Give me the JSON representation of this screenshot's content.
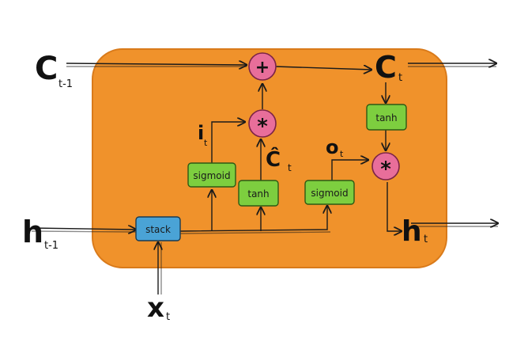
{
  "diagram": {
    "labels": {
      "c_prev_main": "C",
      "c_prev_sub": "t-1",
      "h_prev_main": "h",
      "h_prev_sub": "t-1",
      "x_main": "x",
      "x_sub": "t",
      "c_out_main": "C",
      "c_out_sub": "t",
      "h_out_main": "h",
      "h_out_sub": "t",
      "i_main": "i",
      "i_sub": "t",
      "o_main": "o",
      "o_sub": "t",
      "ctilde_main": "Ĉ",
      "ctilde_sub": "t"
    },
    "boxes": {
      "stack": "stack",
      "sigmoid_input": "sigmoid",
      "tanh_candidate": "tanh",
      "sigmoid_output": "sigmoid",
      "tanh_cell": "tanh"
    },
    "operators": {
      "add": "+",
      "mul_input": "*",
      "mul_output": "*"
    },
    "colors": {
      "cell_body": "#f0922b",
      "gate_box": "#7dce3f",
      "stack_box": "#4aa3d6",
      "operator": "#e86e9a",
      "ink": "#1a1a1a"
    }
  }
}
